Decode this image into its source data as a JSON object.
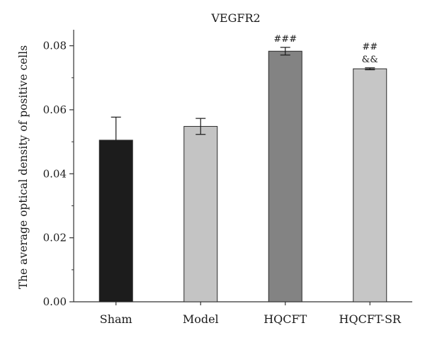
{
  "chart_data": {
    "type": "bar",
    "title": "VEGFR2",
    "xlabel": "",
    "ylabel": "The average optical density of positive cells",
    "ylim": [
      0,
      0.085
    ],
    "yticks": [
      "0.00",
      "0.02",
      "0.04",
      "0.06",
      "0.08"
    ],
    "categories": [
      "Sham",
      "Model",
      "HQCFT",
      "HQCFT-SR"
    ],
    "values": [
      0.0505,
      0.0548,
      0.0783,
      0.0728
    ],
    "error_plus": [
      0.0072,
      0.0025,
      0.0012,
      0.0003
    ],
    "error_minus": [
      0,
      0.0025,
      0.0012,
      0.0003
    ],
    "annotations": [
      [],
      [],
      [
        "###"
      ],
      [
        "##",
        "&&"
      ]
    ],
    "bar_colors": [
      "#1c1c1c",
      "#c4c4c4",
      "#838383",
      "#c6c6c6"
    ],
    "grid": false,
    "legend": "none"
  }
}
